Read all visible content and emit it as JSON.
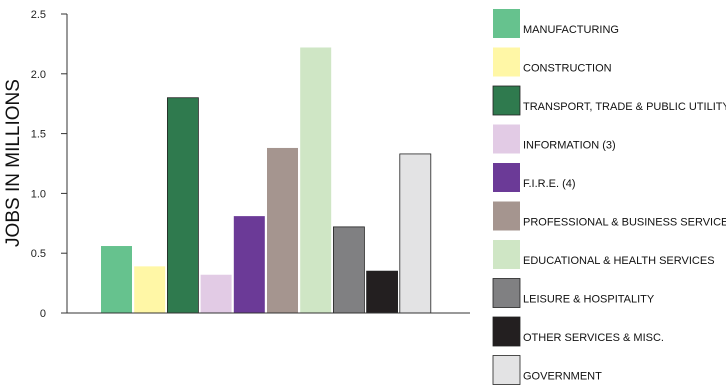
{
  "chart_data": {
    "type": "bar",
    "ylabel": "JOBS IN MILLIONS",
    "xlabel": "",
    "title": "",
    "ylim": [
      0,
      2.5
    ],
    "yticks": [
      "0",
      "0.5",
      "1.0",
      "1.5",
      "2.0",
      "2.5"
    ],
    "grid": false,
    "legend_position": "right",
    "categories": [
      "MANUFACTURING",
      "CONSTRUCTION",
      "TRANSPORT, TRADE & PUBLIC UTILITY",
      "INFORMATION (3)",
      "F.I.R.E. (4)",
      "PROFESSIONAL & BUSINESS SERVICES",
      "EDUCATIONAL & HEALTH SERVICES",
      "LEISURE & HOSPITALITY",
      "OTHER SERVICES & MISC.",
      "GOVERNMENT"
    ],
    "values": [
      0.56,
      0.39,
      1.8,
      0.32,
      0.81,
      1.38,
      2.22,
      0.72,
      0.35,
      1.33
    ],
    "colors": [
      "#66c28e",
      "#fff7a6",
      "#2f7a4e",
      "#e2cbe5",
      "#6b3a97",
      "#a5958f",
      "#cfe6c5",
      "#808082",
      "#231f20",
      "#e3e3e4"
    ],
    "outlined": [
      false,
      false,
      true,
      false,
      false,
      false,
      false,
      true,
      true,
      true
    ]
  }
}
